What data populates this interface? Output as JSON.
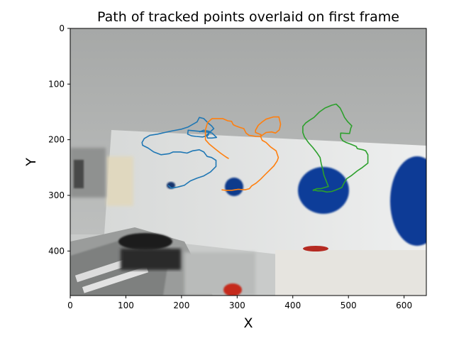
{
  "chart_data": {
    "type": "line",
    "title": "Path of tracked points overlaid on first frame",
    "xlabel": "X",
    "ylabel": "Y",
    "xlim": [
      0,
      640
    ],
    "ylim": [
      480,
      0
    ],
    "y_inverted": true,
    "xticks": [
      0,
      100,
      200,
      300,
      400,
      500,
      600
    ],
    "yticks": [
      0,
      100,
      200,
      300,
      400
    ],
    "background": "webcam frame image",
    "grid": false,
    "series": [
      {
        "color": "#1f77b4",
        "x": [
          176,
          182,
          193,
          205,
          216,
          228,
          240,
          252,
          262,
          262,
          254,
          246,
          240,
          232,
          220,
          210,
          198,
          185,
          178,
          163,
          150,
          140,
          130,
          129,
          133,
          143,
          157,
          170,
          184,
          200,
          212,
          228,
          232,
          240,
          248,
          254,
          258,
          245,
          247,
          255,
          263,
          255,
          244,
          233,
          222,
          212,
          211,
          218,
          226,
          238,
          248,
          250,
          240,
          232
        ],
        "y": [
          282,
          287,
          285,
          282,
          274,
          269,
          265,
          258,
          248,
          237,
          232,
          230,
          222,
          218,
          220,
          224,
          222,
          222,
          225,
          227,
          222,
          215,
          210,
          205,
          198,
          192,
          190,
          187,
          184,
          181,
          177,
          168,
          160,
          162,
          170,
          175,
          180,
          192,
          197,
          197,
          196,
          188,
          186,
          185,
          184,
          183,
          190,
          193,
          194,
          195,
          192,
          185,
          183,
          186
        ]
      },
      {
        "color": "#ff7f0e",
        "x": [
          272,
          280,
          290,
          302,
          314,
          322,
          326,
          334,
          342,
          350,
          358,
          366,
          372,
          374,
          370,
          360,
          352,
          345,
          342,
          343,
          333,
          333,
          338,
          345,
          352,
          365,
          375,
          376,
          378,
          376,
          369,
          362,
          352,
          342,
          334,
          321,
          316,
          312,
          305,
          297,
          293,
          290,
          283,
          274,
          265,
          255,
          247,
          243,
          243,
          250,
          260,
          270,
          280,
          285
        ],
        "y": [
          290,
          291,
          291,
          289,
          290,
          288,
          283,
          278,
          271,
          263,
          255,
          247,
          238,
          232,
          220,
          213,
          205,
          201,
          194,
          191,
          187,
          183,
          174,
          168,
          163,
          159,
          159,
          163,
          172,
          182,
          188,
          186,
          187,
          194,
          194,
          192,
          188,
          180,
          178,
          175,
          173,
          167,
          166,
          162,
          162,
          162,
          169,
          182,
          200,
          208,
          216,
          224,
          231,
          234
        ]
      },
      {
        "color": "#2ca02c",
        "x": [
          436,
          445,
          453,
          461,
          470,
          478,
          488,
          492,
          497,
          506,
          516,
          525,
          535,
          535,
          531,
          526,
          516,
          514,
          504,
          496,
          490,
          486,
          486,
          502,
          504,
          506,
          499,
          493,
          489,
          485,
          478,
          470,
          458,
          448,
          438,
          430,
          423,
          418,
          418,
          421,
          428,
          436,
          443,
          449,
          451,
          454,
          456,
          460,
          464,
          457,
          450,
          443,
          438,
          436
        ],
        "y": [
          290,
          292,
          292,
          294,
          293,
          290,
          286,
          278,
          270,
          264,
          256,
          250,
          242,
          227,
          220,
          218,
          216,
          212,
          208,
          205,
          202,
          196,
          188,
          189,
          180,
          175,
          168,
          160,
          151,
          143,
          136,
          138,
          143,
          150,
          160,
          165,
          170,
          176,
          187,
          195,
          205,
          214,
          223,
          232,
          243,
          254,
          264,
          274,
          284,
          286,
          288,
          288,
          290,
          292
        ]
      }
    ]
  }
}
